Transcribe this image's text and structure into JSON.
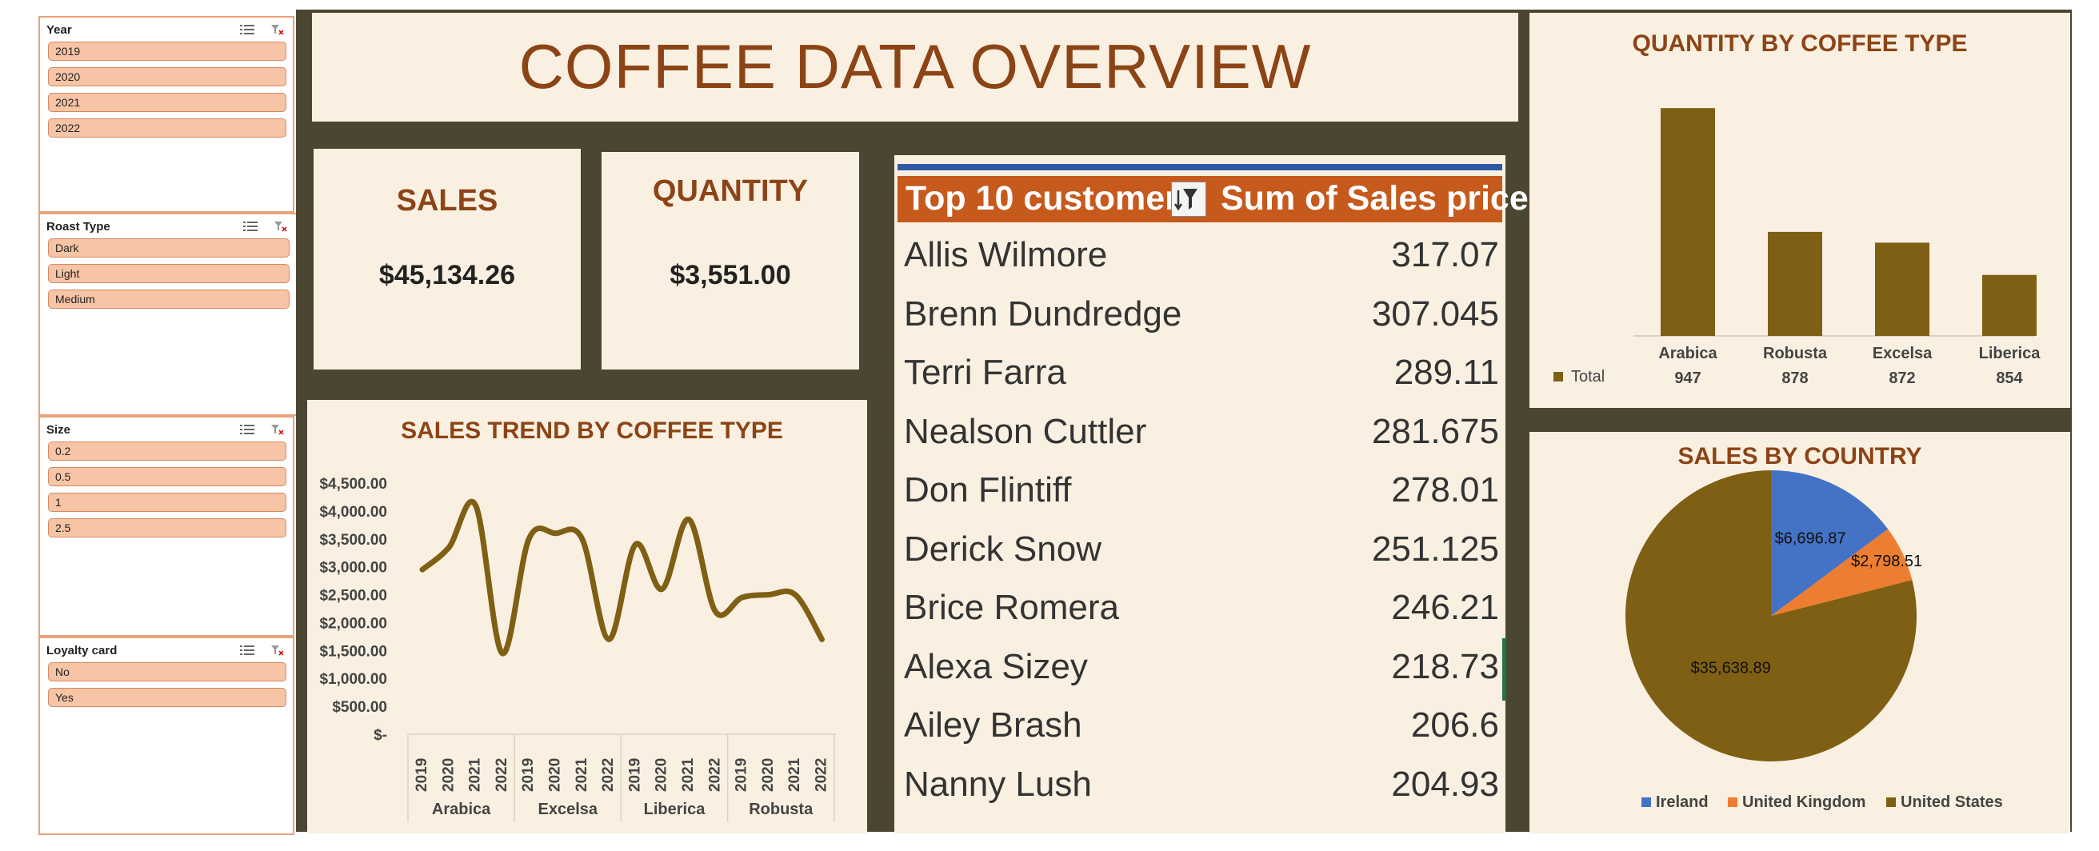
{
  "slicers": [
    {
      "title": "Year",
      "items": [
        "2019",
        "2020",
        "2021",
        "2022"
      ]
    },
    {
      "title": "Roast Type",
      "items": [
        "Dark",
        "Light",
        "Medium"
      ]
    },
    {
      "title": "Size",
      "items": [
        "0.2",
        "0.5",
        "1",
        "2.5"
      ]
    },
    {
      "title": "Loyalty card",
      "items": [
        "No",
        "Yes"
      ]
    }
  ],
  "dashboard": {
    "title": "COFFEE DATA OVERVIEW",
    "sales_label": "SALES",
    "sales_value": "$45,134.26",
    "quantity_label": "QUANTITY",
    "quantity_value": "$3,551.00"
  },
  "customers": {
    "header_left": "Top 10 customers",
    "header_right": "Sum of Sales price",
    "rows": [
      {
        "name": "Allis Wilmore",
        "value": "317.07"
      },
      {
        "name": "Brenn Dundredge",
        "value": "307.045"
      },
      {
        "name": "Terri Farra",
        "value": "289.11"
      },
      {
        "name": "Nealson Cuttler",
        "value": "281.675"
      },
      {
        "name": "Don Flintiff",
        "value": "278.01"
      },
      {
        "name": "Derick Snow",
        "value": "251.125"
      },
      {
        "name": "Brice Romera",
        "value": "246.21"
      },
      {
        "name": "Alexa Sizey",
        "value": "218.73"
      },
      {
        "name": "Ailey Brash",
        "value": "206.6"
      },
      {
        "name": "Nanny Lush",
        "value": "204.93"
      }
    ]
  },
  "colors": {
    "accent": "#8c4416",
    "brown": "#7f5f14",
    "ireland": "#4472c4",
    "uk": "#ed7d31",
    "us": "#7f5f14",
    "header": "#c65a1d",
    "slicer_fill": "#f7c4a5",
    "card_bg": "#f9f0e1",
    "panel_bg": "#4a4632"
  },
  "chart_data": [
    {
      "type": "bar",
      "title": "QUANTITY BY COFFEE TYPE",
      "categories": [
        "Arabica",
        "Robusta",
        "Excelsa",
        "Liberica"
      ],
      "series": [
        {
          "name": "Total",
          "values": [
            947,
            878,
            872,
            854
          ]
        }
      ],
      "table_values": [
        "947",
        "878",
        "872",
        "854"
      ],
      "legend_label": "Total",
      "ylim": [
        820,
        960
      ],
      "grid": false
    },
    {
      "type": "line",
      "title": "SALES TREND BY COFFEE TYPE",
      "groups": [
        "Arabica",
        "Excelsa",
        "Liberica",
        "Robusta"
      ],
      "x_labels": [
        "2019",
        "2020",
        "2021",
        "2022",
        "2019",
        "2020",
        "2021",
        "2022",
        "2019",
        "2020",
        "2021",
        "2022",
        "2019",
        "2020",
        "2021",
        "2022"
      ],
      "values": [
        2950,
        3350,
        4100,
        1450,
        3500,
        3600,
        3500,
        1700,
        3400,
        2600,
        3850,
        2200,
        2450,
        2500,
        2500,
        1700
      ],
      "y_ticks": [
        "$-",
        "$500.00",
        "$1,000.00",
        "$1,500.00",
        "$2,000.00",
        "$2,500.00",
        "$3,000.00",
        "$3,500.00",
        "$4,000.00",
        "$4,500.00"
      ],
      "ylim": [
        0,
        4500
      ],
      "grid": false
    },
    {
      "type": "pie",
      "title": "SALES BY COUNTRY",
      "categories": [
        "Ireland",
        "United Kingdom",
        "United States"
      ],
      "values": [
        6696.87,
        2798.51,
        35638.89
      ],
      "labels": [
        "$6,696.87",
        "$2,798.51",
        "$35,638.89"
      ],
      "legend": "bottom"
    }
  ]
}
